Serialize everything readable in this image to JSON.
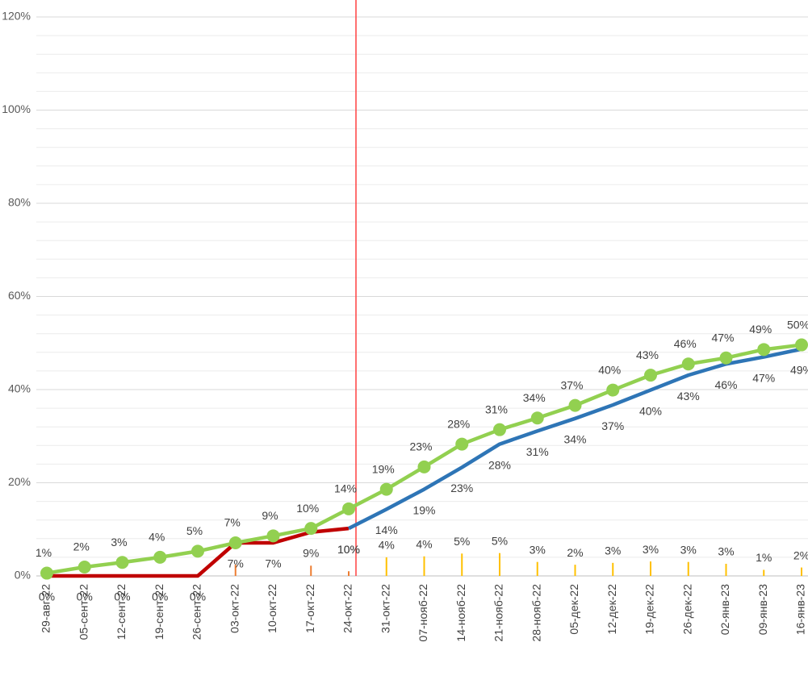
{
  "chart_data": {
    "type": "line",
    "categories": [
      "29-авг-22",
      "05-сент-22",
      "12-сент-22",
      "19-сент-22",
      "26-сент-22",
      "03-окт-22",
      "10-окт-22",
      "17-окт-22",
      "24-окт-22",
      "31-окт-22",
      "07-нояб-22",
      "14-нояб-22",
      "21-нояб-22",
      "28-нояб-22",
      "05-дек-22",
      "12-дек-22",
      "19-дек-22",
      "26-дек-22",
      "02-янв-23",
      "09-янв-23",
      "16-янв-23"
    ],
    "ylim": [
      0,
      124
    ],
    "yticks": [
      {
        "value": 0,
        "label": "0%"
      },
      {
        "value": 20,
        "label": "20%"
      },
      {
        "value": 40,
        "label": "40%"
      },
      {
        "value": 60,
        "label": "60%"
      },
      {
        "value": 80,
        "label": "80%"
      },
      {
        "value": 100,
        "label": "100%"
      },
      {
        "value": 120,
        "label": "120%"
      }
    ],
    "minor_yticks": [
      4,
      8,
      12,
      16,
      24,
      28,
      32,
      36,
      44,
      48,
      52,
      56,
      64,
      68,
      72,
      76,
      84,
      88,
      92,
      96,
      104,
      108,
      112,
      116,
      124
    ],
    "grid": true,
    "series": [
      {
        "type": "bar",
        "color": "#ed7d31",
        "values": [
          null,
          null,
          null,
          null,
          null,
          2.4,
          null,
          2.2,
          1.0,
          null,
          null,
          null,
          null,
          null,
          null,
          null,
          null,
          null,
          null,
          null,
          null
        ]
      },
      {
        "type": "bar",
        "color": "#ffc000",
        "values": [
          null,
          null,
          null,
          null,
          null,
          null,
          null,
          null,
          null,
          4.0,
          4.2,
          4.8,
          4.9,
          3.0,
          2.4,
          2.8,
          3.1,
          3.0,
          2.6,
          1.3,
          1.8
        ],
        "value_labels": [
          null,
          null,
          null,
          null,
          null,
          null,
          null,
          null,
          null,
          "4%",
          "4%",
          "5%",
          "5%",
          "3%",
          "2%",
          "3%",
          "3%",
          "3%",
          "3%",
          "1%",
          "2%"
        ]
      },
      {
        "type": "line",
        "color": "#c00000",
        "values": [
          0,
          0,
          0,
          0,
          0,
          7.1,
          7.1,
          9.4,
          10.2,
          null,
          null,
          null,
          null,
          null,
          null,
          null,
          null,
          null,
          null,
          null,
          null
        ],
        "value_labels": [
          "0%",
          "0%",
          "0%",
          "0%",
          "0%",
          "7%",
          "7%",
          "9%",
          "10%",
          null,
          null,
          null,
          null,
          null,
          null,
          null,
          null,
          null,
          null,
          null,
          null
        ]
      },
      {
        "type": "line",
        "color": "#2e75b6",
        "values": [
          null,
          null,
          null,
          null,
          null,
          null,
          null,
          null,
          10.2,
          14.3,
          18.6,
          23.3,
          28.3,
          31.1,
          33.8,
          36.7,
          39.9,
          43.1,
          45.5,
          47.0,
          48.7
        ],
        "value_labels": [
          null,
          null,
          null,
          null,
          null,
          null,
          null,
          null,
          "10%",
          "14%",
          "19%",
          "23%",
          "28%",
          "31%",
          "34%",
          "37%",
          "40%",
          "43%",
          "46%",
          "47%",
          "49%"
        ]
      },
      {
        "type": "line",
        "color": "#92d050",
        "markers": true,
        "values": [
          0.6,
          1.9,
          2.9,
          4.0,
          5.3,
          7.1,
          8.6,
          10.2,
          14.4,
          18.6,
          23.4,
          28.3,
          31.4,
          33.9,
          36.6,
          39.9,
          43.1,
          45.5,
          46.8,
          48.6,
          49.6
        ],
        "value_labels": [
          "1%",
          "2%",
          "3%",
          "4%",
          "5%",
          "7%",
          "9%",
          "10%",
          "14%",
          "19%",
          "23%",
          "28%",
          "31%",
          "34%",
          "37%",
          "40%",
          "43%",
          "46%",
          "47%",
          "49%",
          "50%"
        ]
      }
    ]
  }
}
